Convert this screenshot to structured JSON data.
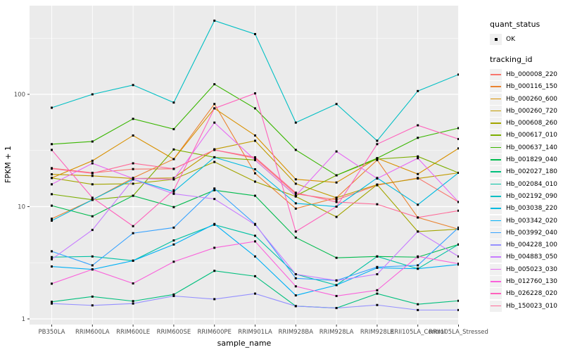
{
  "figure": {
    "x_axis_title": "sample_name",
    "y_axis_title": "FPKM + 1",
    "legend_quant_title": "quant_status",
    "legend_quant_items": [
      "OK"
    ],
    "legend_tracking_title": "tracking_id"
  },
  "chart_data": {
    "type": "line",
    "title": "",
    "xlabel": "sample_name",
    "ylabel": "FPKM + 1",
    "y_scale": "log10",
    "y_tick_labels": [
      "1",
      "10",
      "100"
    ],
    "y_ticks": [
      1,
      10,
      100
    ],
    "y_minor_ticks": [
      3.162,
      31.62,
      316.2
    ],
    "ylim": [
      0.89,
      620
    ],
    "grid": "on",
    "legend_position": "right",
    "point_shape": "filled-square",
    "point_color": "#000000",
    "panel_bg": "#ebebeb",
    "grid_color": "#ffffff",
    "tick_color": "#333333",
    "tick_label_color": "#4d4d4d",
    "categories": [
      "PB350LA",
      "RRIM600LA",
      "RRIM600LE",
      "RRIM600SE",
      "RRIM600PE",
      "RRIM901LA",
      "RRIM928BA",
      "RRIM928LA",
      "RRIM928LE",
      "RRII105LA_Control",
      "RRII105LA_Stressed"
    ],
    "series": [
      {
        "name": "Hb_000008_220",
        "quant_status": "OK",
        "color": "#F8766D",
        "values": [
          22,
          20,
          21.6,
          21.7,
          32,
          27,
          13,
          11.5,
          15.5,
          18,
          11
        ]
      },
      {
        "name": "Hb_000116_150",
        "quant_status": "OK",
        "color": "#EA8331",
        "values": [
          7.8,
          11.5,
          18,
          26.5,
          82,
          19.8,
          9.6,
          12,
          26,
          8,
          6.3
        ]
      },
      {
        "name": "Hb_000260_600",
        "quant_status": "OK",
        "color": "#D89000",
        "values": [
          18,
          25.6,
          43,
          26.5,
          75,
          43,
          17.5,
          16.4,
          27,
          19.5,
          33
        ]
      },
      {
        "name": "Hb_000260_720",
        "quant_status": "OK",
        "color": "#C09B00",
        "values": [
          19.4,
          18.8,
          17.8,
          18,
          32.4,
          38.6,
          16,
          12,
          15.7,
          17.8,
          20
        ]
      },
      {
        "name": "Hb_000608_260",
        "quant_status": "OK",
        "color": "#A3A500",
        "values": [
          18,
          15.8,
          16,
          17.5,
          25,
          16.7,
          12.3,
          8.1,
          15.7,
          6,
          6.3
        ]
      },
      {
        "name": "Hb_000617_010",
        "quant_status": "OK",
        "color": "#7CAE00",
        "values": [
          12.9,
          11.5,
          12.5,
          32.3,
          27.5,
          26,
          12.5,
          19,
          26.5,
          28,
          20
        ]
      },
      {
        "name": "Hb_000637_140",
        "quant_status": "OK",
        "color": "#39B600",
        "values": [
          36,
          38,
          60.5,
          49,
          123,
          75,
          32,
          19,
          27,
          41,
          50
        ]
      },
      {
        "name": "Hb_001829_040",
        "quant_status": "OK",
        "color": "#00BB4E",
        "values": [
          10.2,
          8.2,
          12.5,
          9.9,
          14,
          12.5,
          5.3,
          3.5,
          3.6,
          3.55,
          4.6
        ]
      },
      {
        "name": "Hb_002027_180",
        "quant_status": "OK",
        "color": "#00BF7D",
        "values": [
          1.42,
          1.58,
          1.44,
          1.65,
          2.68,
          2.4,
          1.3,
          1.25,
          1.68,
          1.35,
          1.45
        ]
      },
      {
        "name": "Hb_002084_010",
        "quant_status": "OK",
        "color": "#00C1A3",
        "values": [
          3.55,
          3.6,
          3.3,
          5.0,
          6.9,
          5.5,
          2.5,
          2.0,
          3.6,
          2.8,
          4.6
        ]
      },
      {
        "name": "Hb_002192_090",
        "quant_status": "OK",
        "color": "#00BFC4",
        "values": [
          76,
          100,
          121,
          84.5,
          453,
          344,
          56,
          82,
          38.6,
          107,
          150
        ]
      },
      {
        "name": "Hb_003038_220",
        "quant_status": "OK",
        "color": "#00BAE0",
        "values": [
          7.5,
          11.5,
          17.5,
          13.6,
          27.5,
          21.5,
          10.7,
          10,
          18,
          10.4,
          20
        ]
      },
      {
        "name": "Hb_003342_020",
        "quant_status": "OK",
        "color": "#00B0F6",
        "values": [
          2.93,
          2.76,
          3.3,
          4.6,
          7.0,
          3.6,
          1.62,
          2.0,
          2.85,
          2.8,
          3.05
        ]
      },
      {
        "name": "Hb_003992_040",
        "quant_status": "OK",
        "color": "#35A2FF",
        "values": [
          4.0,
          3.0,
          5.8,
          6.5,
          14.5,
          7.0,
          2.3,
          2.2,
          2.9,
          3.0,
          6.5
        ]
      },
      {
        "name": "Hb_004228_100",
        "quant_status": "OK",
        "color": "#9590FF",
        "values": [
          1.37,
          1.32,
          1.37,
          1.6,
          1.5,
          1.68,
          1.3,
          1.25,
          1.33,
          1.2,
          1.2
        ]
      },
      {
        "name": "Hb_004883_050",
        "quant_status": "OK",
        "color": "#C77CFF",
        "values": [
          3.4,
          6.2,
          17.5,
          13,
          11.7,
          6.9,
          2.5,
          2.2,
          2.5,
          6,
          3.6
        ]
      },
      {
        "name": "Hb_005023_030",
        "quant_status": "OK",
        "color": "#E76BF3",
        "values": [
          15.8,
          24.3,
          17.8,
          17.5,
          56,
          26,
          12.5,
          31,
          17.8,
          27,
          11
        ]
      },
      {
        "name": "Hb_012760_130",
        "quant_status": "OK",
        "color": "#FA62DB",
        "values": [
          2.06,
          2.76,
          2.07,
          3.23,
          4.3,
          4.9,
          1.95,
          1.6,
          1.8,
          3.6,
          3.1
        ]
      },
      {
        "name": "Hb_026228_020",
        "quant_status": "OK",
        "color": "#FF62BC",
        "values": [
          32,
          12,
          6.7,
          14,
          75,
          102,
          6,
          10,
          36,
          53,
          40
        ]
      },
      {
        "name": "Hb_150023_010",
        "quant_status": "OK",
        "color": "#FF6A98",
        "values": [
          21.8,
          19.8,
          24.3,
          21.7,
          32,
          27.5,
          13.3,
          11,
          10.5,
          8,
          9.2
        ]
      }
    ]
  }
}
